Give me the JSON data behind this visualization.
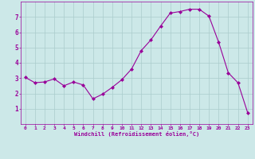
{
  "x": [
    0,
    1,
    2,
    3,
    4,
    5,
    6,
    7,
    8,
    9,
    10,
    11,
    12,
    13,
    14,
    15,
    16,
    17,
    18,
    19,
    20,
    21,
    22,
    23
  ],
  "y": [
    3.05,
    2.7,
    2.75,
    2.95,
    2.5,
    2.75,
    2.55,
    1.65,
    1.95,
    2.4,
    2.9,
    3.6,
    4.8,
    5.5,
    6.4,
    7.25,
    7.35,
    7.5,
    7.5,
    7.05,
    5.35,
    3.35,
    2.7,
    0.75
  ],
  "line_color": "#990099",
  "marker": "D",
  "marker_size": 2,
  "bg_color": "#cce8e8",
  "grid_color": "#aacccc",
  "xlabel": "Windchill (Refroidissement éolien,°C)",
  "xlabel_color": "#990099",
  "tick_color": "#990099",
  "ylim": [
    0,
    8
  ],
  "xlim": [
    -0.5,
    23.5
  ],
  "yticks": [
    1,
    2,
    3,
    4,
    5,
    6,
    7
  ],
  "xticks": [
    0,
    1,
    2,
    3,
    4,
    5,
    6,
    7,
    8,
    9,
    10,
    11,
    12,
    13,
    14,
    15,
    16,
    17,
    18,
    19,
    20,
    21,
    22,
    23
  ],
  "figsize": [
    3.2,
    2.0
  ],
  "dpi": 100
}
